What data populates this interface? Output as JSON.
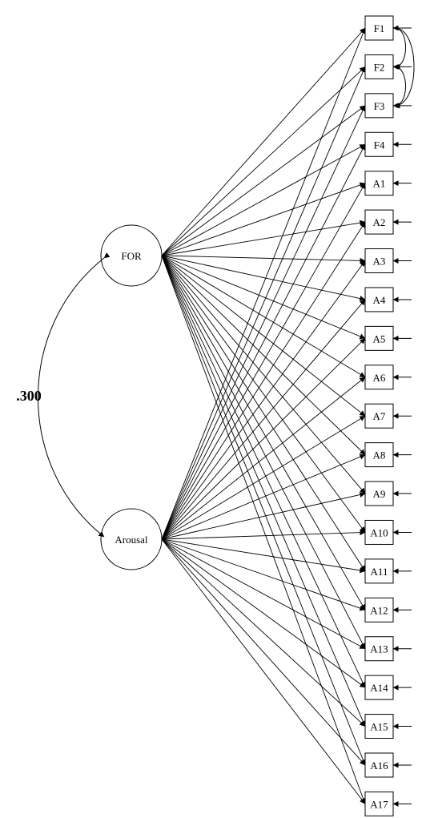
{
  "latent_factors": [
    {
      "id": "FOR",
      "label": "FOR"
    },
    {
      "id": "Arousal",
      "label": "Arousal"
    }
  ],
  "factor_correlation": {
    "label": ".300",
    "between": [
      "FOR",
      "Arousal"
    ]
  },
  "indicators": [
    {
      "label": "F1"
    },
    {
      "label": "F2"
    },
    {
      "label": "F3"
    },
    {
      "label": "F4"
    },
    {
      "label": "A1"
    },
    {
      "label": "A2"
    },
    {
      "label": "A3"
    },
    {
      "label": "A4"
    },
    {
      "label": "A5"
    },
    {
      "label": "A6"
    },
    {
      "label": "A7"
    },
    {
      "label": "A8"
    },
    {
      "label": "A9"
    },
    {
      "label": "A10"
    },
    {
      "label": "A11"
    },
    {
      "label": "A12"
    },
    {
      "label": "A13"
    },
    {
      "label": "A14"
    },
    {
      "label": "A15"
    },
    {
      "label": "A16"
    },
    {
      "label": "A17"
    }
  ],
  "paths": "every latent factor loads on every indicator",
  "error_terms": "one incoming error arrow per indicator",
  "error_covariances": [
    {
      "between": [
        "F1",
        "F2"
      ]
    },
    {
      "between": [
        "F1",
        "F3"
      ]
    },
    {
      "between": [
        "F2",
        "F3"
      ]
    }
  ],
  "colors": {
    "stroke": "#000000",
    "background": "#ffffff"
  }
}
